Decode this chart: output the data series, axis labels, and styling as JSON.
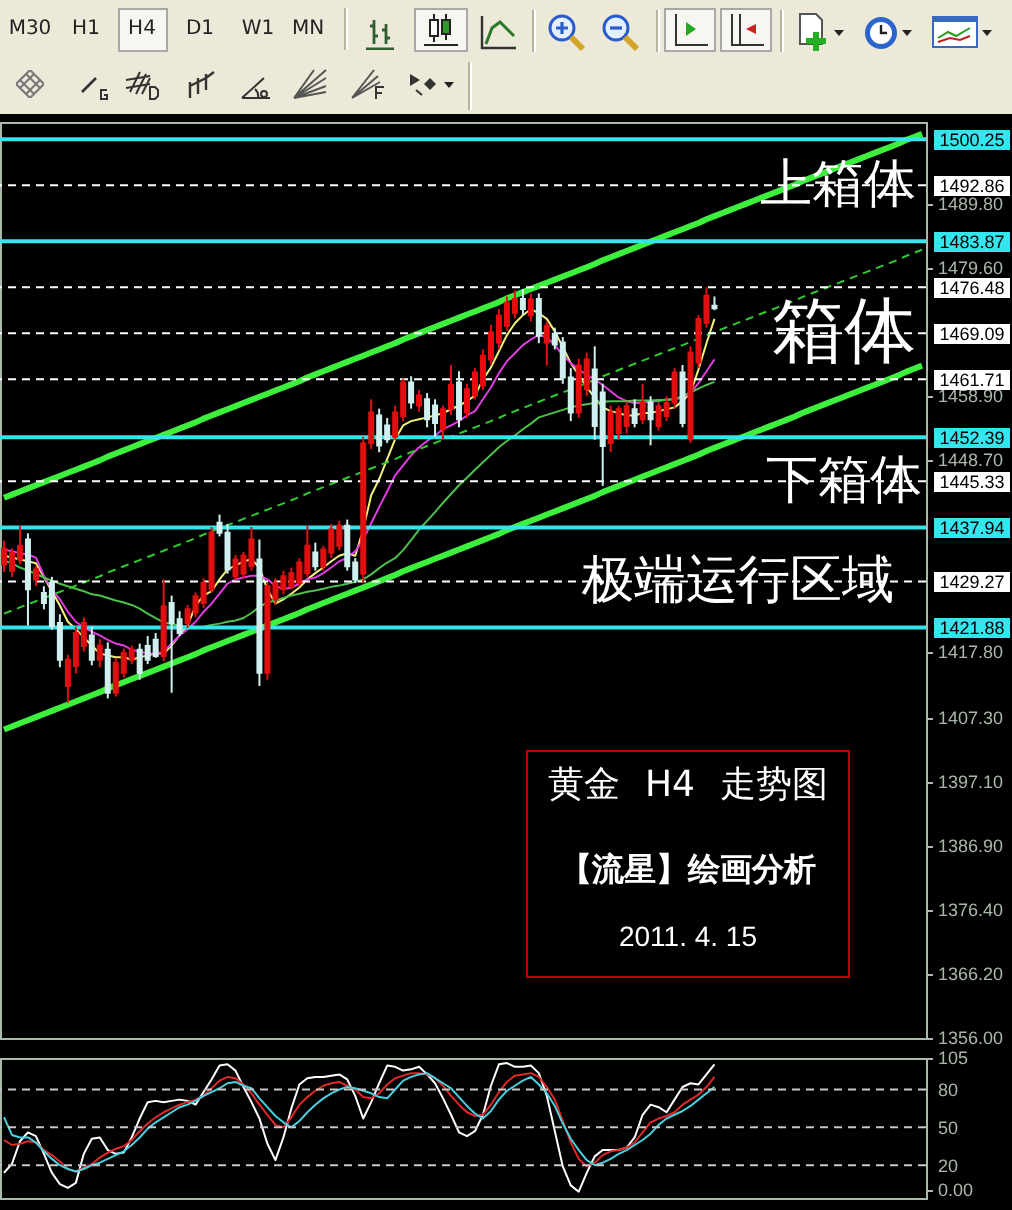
{
  "chart_data": [
    {
      "type": "candlestick",
      "title": "黄金 H4 走势图",
      "subtitle": "【流星】绘画分析",
      "categories": [
        null,
        null,
        null,
        null,
        null,
        null,
        null,
        null,
        null,
        null,
        null,
        null,
        null,
        null,
        null,
        null,
        null,
        null,
        null,
        null,
        null,
        null,
        null,
        null,
        null,
        null,
        null,
        null,
        null,
        null,
        null,
        null,
        null,
        null,
        null,
        null,
        null,
        null,
        null,
        null,
        null,
        null,
        null,
        null,
        null,
        null,
        null,
        null,
        null,
        null,
        null,
        null,
        null,
        null,
        null,
        null,
        null,
        null,
        null,
        null,
        null,
        null,
        null,
        null,
        null,
        null,
        null,
        null,
        null,
        null,
        null,
        null,
        null,
        null,
        null,
        null,
        null,
        null,
        null,
        null,
        null,
        null,
        null,
        null,
        null,
        null,
        null,
        null,
        null,
        null,
        null,
        null,
        null,
        null,
        null,
        null,
        null,
        null,
        null,
        null,
        null,
        null,
        null,
        null,
        null,
        null,
        null,
        null,
        null,
        null,
        null,
        null,
        null,
        null,
        null,
        null
      ],
      "ohlc": [
        [
          1432.0,
          1435.8,
          1430.8,
          1434.5
        ],
        [
          1431.0,
          1434.6,
          1430.0,
          1433.8
        ],
        [
          1432.8,
          1438.2,
          1432.0,
          1435.0
        ],
        [
          1436.0,
          1437.0,
          1422.2,
          1428.0
        ],
        [
          1429.6,
          1431.8,
          1428.5,
          1431.2
        ],
        [
          1427.4,
          1428.5,
          1424.8,
          1425.8
        ],
        [
          1429.0,
          1430.0,
          1421.5,
          1422.1
        ],
        [
          1422.6,
          1424.0,
          1415.5,
          1416.7
        ],
        [
          1412.5,
          1417.5,
          1409.8,
          1416.7
        ],
        [
          1415.7,
          1422.0,
          1414.5,
          1421.0
        ],
        [
          1418.9,
          1423.5,
          1418.0,
          1422.6
        ],
        [
          1420.6,
          1422.0,
          1415.8,
          1416.7
        ],
        [
          1416.7,
          1420.0,
          1415.5,
          1419.0
        ],
        [
          1418.3,
          1419.5,
          1410.5,
          1411.4
        ],
        [
          1411.4,
          1417.0,
          1410.8,
          1416.2
        ],
        [
          1414.6,
          1418.5,
          1413.8,
          1417.8
        ],
        [
          1416.7,
          1419.0,
          1416.0,
          1418.3
        ],
        [
          1418.3,
          1419.3,
          1413.5,
          1414.6
        ],
        [
          1418.9,
          1420.5,
          1416.0,
          1416.7
        ],
        [
          1419.9,
          1421.0,
          1417.0,
          1417.3
        ],
        [
          1417.3,
          1429.6,
          1416.5,
          1425.3
        ],
        [
          1425.8,
          1427.0,
          1411.4,
          1422.6
        ],
        [
          1423.2,
          1424.5,
          1420.5,
          1421.0
        ],
        [
          1422.6,
          1425.5,
          1421.8,
          1424.8
        ],
        [
          1424.3,
          1427.5,
          1423.5,
          1426.9
        ],
        [
          1425.8,
          1429.8,
          1425.0,
          1429.0
        ],
        [
          1428.0,
          1438.0,
          1427.5,
          1437.1
        ],
        [
          1438.7,
          1440.0,
          1436.5,
          1437.1
        ],
        [
          1437.1,
          1438.5,
          1430.5,
          1431.2
        ],
        [
          1430.1,
          1433.5,
          1429.5,
          1432.8
        ],
        [
          1430.5,
          1434.0,
          1429.8,
          1433.4
        ],
        [
          1431.7,
          1438.0,
          1431.0,
          1436.0
        ],
        [
          1432.8,
          1436.0,
          1412.5,
          1414.6
        ],
        [
          1414.6,
          1429.0,
          1413.5,
          1428.5
        ],
        [
          1426.4,
          1429.8,
          1425.5,
          1429.0
        ],
        [
          1428.0,
          1431.0,
          1427.2,
          1430.1
        ],
        [
          1428.5,
          1431.5,
          1428.0,
          1430.6
        ],
        [
          1429.0,
          1433.0,
          1428.5,
          1432.3
        ],
        [
          1430.6,
          1438.2,
          1430.0,
          1435.0
        ],
        [
          1433.9,
          1435.5,
          1431.0,
          1431.7
        ],
        [
          1431.7,
          1435.0,
          1431.0,
          1434.4
        ],
        [
          1433.9,
          1438.5,
          1433.0,
          1437.6
        ],
        [
          1435.0,
          1439.0,
          1434.3,
          1438.2
        ],
        [
          1438.2,
          1439.2,
          1431.0,
          1431.7
        ],
        [
          1432.3,
          1433.0,
          1429.0,
          1429.6
        ],
        [
          1430.5,
          1452.5,
          1429.0,
          1451.4
        ],
        [
          1451.5,
          1458.5,
          1450.5,
          1456.4
        ],
        [
          1455.9,
          1457.0,
          1450.0,
          1451.1
        ],
        [
          1454.3,
          1455.5,
          1451.5,
          1452.1
        ],
        [
          1452.5,
          1457.5,
          1452.0,
          1456.4
        ],
        [
          1455.8,
          1461.8,
          1455.0,
          1461.2
        ],
        [
          1461.2,
          1462.2,
          1457.0,
          1458.0
        ],
        [
          1457.5,
          1460.0,
          1456.5,
          1459.1
        ],
        [
          1458.5,
          1459.5,
          1454.0,
          1455.3
        ],
        [
          1457.5,
          1458.5,
          1452.5,
          1454.7
        ],
        [
          1453.7,
          1457.5,
          1452.0,
          1456.9
        ],
        [
          1456.9,
          1464.0,
          1456.0,
          1460.8
        ],
        [
          1461.2,
          1463.0,
          1454.0,
          1455.3
        ],
        [
          1456.4,
          1461.0,
          1455.5,
          1460.1
        ],
        [
          1459.1,
          1463.5,
          1458.5,
          1462.8
        ],
        [
          1460.7,
          1466.5,
          1460.0,
          1465.5
        ],
        [
          1464.9,
          1470.5,
          1464.0,
          1469.2
        ],
        [
          1467.6,
          1473.0,
          1466.5,
          1471.9
        ],
        [
          1470.3,
          1475.0,
          1469.5,
          1474.0
        ],
        [
          1472.4,
          1476.0,
          1471.5,
          1474.6
        ],
        [
          1474.6,
          1476.2,
          1472.0,
          1473.0
        ],
        [
          1472.0,
          1475.5,
          1471.0,
          1474.5
        ],
        [
          1474.6,
          1475.5,
          1467.5,
          1468.7
        ],
        [
          1467.6,
          1471.0,
          1463.9,
          1470.3
        ],
        [
          1469.0,
          1470.0,
          1466.5,
          1467.3
        ],
        [
          1467.6,
          1468.5,
          1461.0,
          1462.0
        ],
        [
          1462.0,
          1463.5,
          1455.0,
          1456.4
        ],
        [
          1456.4,
          1465.0,
          1455.5,
          1463.9
        ],
        [
          1460.1,
          1466.0,
          1459.0,
          1464.9
        ],
        [
          1463.3,
          1467.0,
          1452.0,
          1454.2
        ],
        [
          1459.6,
          1461.0,
          1444.6,
          1451.0
        ],
        [
          1451.5,
          1457.5,
          1450.0,
          1456.4
        ],
        [
          1453.1,
          1457.5,
          1452.0,
          1456.9
        ],
        [
          1454.2,
          1458.0,
          1453.0,
          1457.4
        ],
        [
          1456.9,
          1458.5,
          1454.0,
          1454.7
        ],
        [
          1455.3,
          1461.0,
          1454.5,
          1458.0
        ],
        [
          1458.0,
          1459.0,
          1451.1,
          1455.3
        ],
        [
          1454.2,
          1458.0,
          1453.5,
          1457.4
        ],
        [
          1455.8,
          1459.0,
          1455.0,
          1457.9
        ],
        [
          1458.0,
          1463.5,
          1457.0,
          1462.8
        ],
        [
          1462.8,
          1464.0,
          1454.0,
          1454.7
        ],
        [
          1452.1,
          1467.0,
          1451.5,
          1466.0
        ],
        [
          1464.4,
          1472.0,
          1463.5,
          1471.4
        ],
        [
          1470.8,
          1476.5,
          1470.0,
          1475.1
        ],
        [
          1473.5,
          1475.0,
          1472.8,
          1473.1
        ],
        null,
        null,
        null,
        null,
        null,
        null,
        null,
        null,
        null,
        null,
        null,
        null,
        null,
        null,
        null,
        null,
        null,
        null,
        null,
        null,
        null,
        null,
        null,
        null,
        null,
        null
      ],
      "colors": [
        "#e01010",
        "#e01010",
        "#e01010",
        "#d0f0f0",
        "#e01010",
        "#d0f0f0",
        "#d0f0f0",
        "#d0f0f0",
        "#e01010",
        "#e01010",
        "#e01010",
        "#d0f0f0",
        "#e01010",
        "#d0f0f0",
        "#e01010",
        "#e01010",
        "#e01010",
        "#d0f0f0",
        "#d0f0f0",
        "#d0f0f0",
        "#e01010",
        "#d0f0f0",
        "#d0f0f0",
        "#e01010",
        "#e01010",
        "#e01010",
        "#e01010",
        "#d0f0f0",
        "#d0f0f0",
        "#e01010",
        "#e01010",
        "#e01010",
        "#d0f0f0",
        "#e01010",
        "#e01010",
        "#e01010",
        "#e01010",
        "#e01010",
        "#e01010",
        "#d0f0f0",
        "#e01010",
        "#e01010",
        "#e01010",
        "#d0f0f0",
        "#d0f0f0",
        "#e01010",
        "#e01010",
        "#d0f0f0",
        "#d0f0f0",
        "#e01010",
        "#e01010",
        "#d0f0f0",
        "#e01010",
        "#d0f0f0",
        "#d0f0f0",
        "#e01010",
        "#e01010",
        "#d0f0f0",
        "#e01010",
        "#e01010",
        "#e01010",
        "#e01010",
        "#e01010",
        "#e01010",
        "#e01010",
        "#d0f0f0",
        "#e01010",
        "#d0f0f0",
        "#e01010",
        "#d0f0f0",
        "#d0f0f0",
        "#d0f0f0",
        "#e01010",
        "#e01010",
        "#d0f0f0",
        "#d0f0f0",
        "#e01010",
        "#e01010",
        "#e01010",
        "#d0f0f0",
        "#e01010",
        "#d0f0f0",
        "#e01010",
        "#e01010",
        "#e01010",
        "#d0f0f0",
        "#e01010",
        "#e01010",
        "#e01010",
        "#d0f0f0",
        null,
        null,
        null,
        null,
        null,
        null,
        null,
        null,
        null,
        null,
        null,
        null,
        null,
        null,
        null,
        null,
        null,
        null,
        null,
        null,
        null,
        null,
        null,
        null,
        null,
        null
      ],
      "series": [
        {
          "type": "line",
          "color": "#f2f27a",
          "values": [
            1433.4,
            1433.1,
            1432.8,
            1432.5,
            1432.2,
            1430.0,
            1427.7,
            1425.4,
            1422.8,
            1421.6,
            1420.3,
            1419.0,
            1417.7,
            1417.4,
            1417.1,
            1417.1,
            1416.7,
            1417.1,
            1417.4,
            1417.7,
            1417.7,
            1419.0,
            1420.6,
            1422.2,
            1425.4,
            1427.0,
            1427.7,
            1429.6,
            1431.2,
            1431.8,
            1432.5,
            1432.8,
            1431.5,
            1428.0,
            1425.7,
            1426.4,
            1427.3,
            1428.3,
            1429.6,
            1430.6,
            1431.5,
            1432.5,
            1433.4,
            1433.8,
            1433.4,
            1437.6,
            1443.1,
            1445.7,
            1448.9,
            1452.1,
            1454.3,
            1455.0,
            1455.3,
            1455.6,
            1455.9,
            1456.3,
            1456.9,
            1457.5,
            1458.2,
            1459.1,
            1461.7,
            1463.6,
            1466.2,
            1468.8,
            1470.7,
            1472.0,
            1473.0,
            1472.3,
            1471.4,
            1469.4,
            1466.9,
            1464.3,
            1462.4,
            1460.4,
            1458.8,
            1457.2,
            1456.6,
            1456.3,
            1455.9,
            1455.9,
            1456.3,
            1456.3,
            1456.6,
            1456.9,
            1457.2,
            1458.2,
            1459.5,
            1463.3,
            1467.5,
            1471.4,
            null,
            null,
            null,
            null,
            null,
            null,
            null,
            null,
            null,
            null,
            null,
            null,
            null,
            null,
            null,
            null,
            null,
            null,
            null,
            null,
            null,
            null,
            null,
            null,
            null,
            null
          ]
        },
        {
          "type": "line",
          "color": "#e23ce2",
          "values": [
            1434.4,
            1434.1,
            1433.8,
            1433.6,
            1433.1,
            1430.2,
            1428.0,
            1426.4,
            1424.4,
            1422.8,
            1421.9,
            1421.2,
            1420.6,
            1419.9,
            1419.3,
            1419.0,
            1418.3,
            1418.0,
            1417.7,
            1417.7,
            1418.0,
            1419.3,
            1420.6,
            1421.6,
            1422.8,
            1424.4,
            1425.7,
            1427.3,
            1428.9,
            1429.6,
            1429.9,
            1430.2,
            1430.2,
            1429.6,
            1428.6,
            1428.0,
            1428.3,
            1428.9,
            1429.6,
            1429.9,
            1430.6,
            1431.5,
            1432.5,
            1433.1,
            1434.1,
            1436.0,
            1438.6,
            1441.2,
            1443.7,
            1446.3,
            1447.9,
            1449.5,
            1450.8,
            1451.8,
            1452.7,
            1453.7,
            1454.3,
            1455.0,
            1455.9,
            1456.6,
            1458.5,
            1460.4,
            1462.7,
            1464.6,
            1465.9,
            1467.2,
            1468.1,
            1468.8,
            1468.5,
            1467.2,
            1465.6,
            1464.3,
            1463.3,
            1462.4,
            1461.7,
            1460.8,
            1459.8,
            1458.8,
            1458.2,
            1457.9,
            1457.9,
            1458.2,
            1458.2,
            1458.5,
            1458.5,
            1458.8,
            1459.5,
            1461.1,
            1463.0,
            1464.9,
            null,
            null,
            null,
            null,
            null,
            null,
            null,
            null,
            null,
            null,
            null,
            null,
            null,
            null,
            null,
            null,
            null,
            null,
            null,
            null,
            null,
            null,
            null,
            null,
            null,
            null
          ]
        },
        {
          "type": "line",
          "color": "#4cc04c",
          "values": [
            1432.6,
            1432.2,
            1431.5,
            1431.0,
            1430.5,
            1429.9,
            1429.4,
            1428.9,
            1428.5,
            1428.1,
            1427.7,
            1427.2,
            1427.0,
            1426.6,
            1426.2,
            1425.9,
            1425.5,
            1424.9,
            1424.1,
            1423.4,
            1422.7,
            1422.4,
            1422.2,
            1422.0,
            1421.9,
            1422.0,
            1422.3,
            1422.5,
            1422.8,
            1423.0,
            1423.4,
            1424.2,
            1425.2,
            1425.9,
            1426.2,
            1426.6,
            1427.0,
            1427.3,
            1427.6,
            1427.8,
            1428.1,
            1428.4,
            1428.6,
            1428.9,
            1429.2,
            1429.6,
            1430.4,
            1431.4,
            1432.3,
            1433.0,
            1434.3,
            1435.9,
            1437.6,
            1439.0,
            1440.4,
            1441.9,
            1443.3,
            1444.7,
            1445.9,
            1447.2,
            1448.4,
            1449.6,
            1450.8,
            1451.8,
            1452.7,
            1453.7,
            1454.6,
            1455.6,
            1456.0,
            1456.4,
            1456.8,
            1457.2,
            1457.5,
            1457.7,
            1457.9,
            1458.1,
            1458.2,
            1458.2,
            1458.2,
            1458.3,
            1458.3,
            1458.3,
            1458.4,
            1458.4,
            1458.5,
            1459.0,
            1459.6,
            1460.2,
            1460.8,
            1461.3,
            null,
            null,
            null,
            null,
            null,
            null,
            null,
            null,
            null,
            null,
            null,
            null,
            null,
            null,
            null,
            null,
            null,
            null,
            null,
            null,
            null,
            null,
            null,
            null,
            null,
            null
          ]
        },
        {
          "type": "line",
          "color": "#3ef03e",
          "values": [
            1442.7,
            1443.2,
            1443.7,
            1444.2,
            1444.7,
            1445.2,
            1445.7,
            1446.2,
            1446.7,
            1447.2,
            1447.7,
            1448.2,
            1448.7,
            1449.3,
            1449.8,
            1450.3,
            1450.8,
            1451.3,
            1451.8,
            1452.3,
            1452.8,
            1453.3,
            1453.8,
            1454.3,
            1454.8,
            1455.4,
            1455.9,
            1456.4,
            1456.9,
            1457.4,
            1457.9,
            1458.4,
            1458.9,
            1459.4,
            1459.9,
            1460.4,
            1460.9,
            1461.4,
            1462.0,
            1462.5,
            1463.0,
            1463.5,
            1464.0,
            1464.5,
            1465.0,
            1465.5,
            1466.0,
            1466.5,
            1467.0,
            1467.5,
            1468.1,
            1468.6,
            1469.1,
            1469.6,
            1470.1,
            1470.6,
            1471.1,
            1471.6,
            1472.1,
            1472.6,
            1473.1,
            1473.6,
            1474.1,
            1474.7,
            1475.2,
            1475.7,
            1476.2,
            1476.7,
            1477.2,
            1477.7,
            1478.2,
            1478.7,
            1479.2,
            1479.7,
            1480.2,
            1480.8,
            1481.3,
            1481.8,
            1482.3,
            1482.8,
            1483.3,
            1483.8,
            1484.3,
            1484.8,
            1485.3,
            1485.8,
            1486.3,
            1486.8,
            1487.4,
            1487.9,
            1488.4,
            1488.9,
            1489.4,
            1489.9,
            1490.4,
            1490.9,
            1491.4,
            1491.9,
            1492.4,
            1492.9,
            1493.5,
            1494.0,
            1494.5,
            1495.0,
            1495.5,
            1496.0,
            1496.5,
            1497.0,
            1497.5,
            1498.0,
            1498.5,
            1499.0,
            1499.5,
            1500.1,
            1500.6,
            1501.1
          ]
        },
        {
          "type": "line",
          "color": "#2ecc2e",
          "line_style": "dashed",
          "values": [
            1424.1,
            1424.6,
            1425.1,
            1425.6,
            1426.1,
            1426.6,
            1427.1,
            1427.6,
            1428.1,
            1428.6,
            1429.1,
            1429.6,
            1430.1,
            1430.7,
            1431.2,
            1431.7,
            1432.2,
            1432.7,
            1433.2,
            1433.7,
            1434.2,
            1434.7,
            1435.2,
            1435.7,
            1436.2,
            1436.8,
            1437.3,
            1437.8,
            1438.3,
            1438.8,
            1439.3,
            1439.8,
            1440.3,
            1440.8,
            1441.3,
            1441.8,
            1442.3,
            1442.8,
            1443.4,
            1443.9,
            1444.4,
            1444.9,
            1445.4,
            1445.9,
            1446.4,
            1446.9,
            1447.4,
            1447.9,
            1448.4,
            1448.9,
            1449.5,
            1450.0,
            1450.5,
            1451.0,
            1451.5,
            1452.0,
            1452.5,
            1453.0,
            1453.5,
            1454.0,
            1454.5,
            1455.0,
            1455.5,
            1456.1,
            1456.6,
            1457.1,
            1457.6,
            1458.1,
            1458.6,
            1459.1,
            1459.6,
            1460.1,
            1460.6,
            1461.1,
            1461.6,
            1462.2,
            1462.7,
            1463.2,
            1463.7,
            1464.2,
            1464.7,
            1465.2,
            1465.7,
            1466.2,
            1466.7,
            1467.2,
            1467.7,
            1468.2,
            1468.8,
            1469.3,
            1469.8,
            1470.3,
            1470.8,
            1471.3,
            1471.8,
            1472.3,
            1472.8,
            1473.3,
            1473.8,
            1474.3,
            1474.9,
            1475.4,
            1475.9,
            1476.4,
            1476.9,
            1477.4,
            1477.9,
            1478.4,
            1478.9,
            1479.4,
            1479.9,
            1480.4,
            1480.9,
            1481.5,
            1482.0,
            1482.5
          ]
        },
        {
          "type": "line",
          "color": "#3ef03e",
          "values": [
            1405.5,
            1406.0,
            1406.5,
            1407.0,
            1407.5,
            1408.0,
            1408.5,
            1409.0,
            1409.5,
            1410.0,
            1410.5,
            1411.0,
            1411.5,
            1412.1,
            1412.6,
            1413.1,
            1413.6,
            1414.1,
            1414.6,
            1415.1,
            1415.6,
            1416.1,
            1416.6,
            1417.1,
            1417.6,
            1418.2,
            1418.7,
            1419.2,
            1419.7,
            1420.2,
            1420.7,
            1421.2,
            1421.7,
            1422.2,
            1422.7,
            1423.2,
            1423.7,
            1424.2,
            1424.8,
            1425.3,
            1425.8,
            1426.3,
            1426.8,
            1427.3,
            1427.8,
            1428.3,
            1428.8,
            1429.3,
            1429.8,
            1430.3,
            1430.9,
            1431.4,
            1431.9,
            1432.4,
            1432.9,
            1433.4,
            1433.9,
            1434.4,
            1434.9,
            1435.4,
            1435.9,
            1436.4,
            1436.9,
            1437.5,
            1438.0,
            1438.5,
            1439.0,
            1439.5,
            1440.0,
            1440.5,
            1441.0,
            1441.5,
            1442.0,
            1442.5,
            1443.0,
            1443.6,
            1444.1,
            1444.6,
            1445.1,
            1445.6,
            1446.1,
            1446.6,
            1447.1,
            1447.6,
            1448.1,
            1448.6,
            1449.1,
            1449.6,
            1450.2,
            1450.7,
            1451.2,
            1451.7,
            1452.2,
            1452.7,
            1453.2,
            1453.7,
            1454.2,
            1454.7,
            1455.2,
            1455.7,
            1456.3,
            1456.8,
            1457.3,
            1457.8,
            1458.3,
            1458.8,
            1459.3,
            1459.8,
            1460.3,
            1460.8,
            1461.3,
            1461.8,
            1462.3,
            1462.9,
            1463.4,
            1463.9
          ]
        }
      ],
      "ylim": [
        1356,
        1503
      ],
      "yticks": [
        {
          "value": 1489.8,
          "label": "1489.80"
        },
        {
          "value": 1479.6,
          "label": "1479.60"
        },
        {
          "value": 1458.9,
          "label": "1458.90"
        },
        {
          "value": 1448.7,
          "label": "1448.70"
        },
        {
          "value": 1417.8,
          "label": "1417.80"
        },
        {
          "value": 1407.3,
          "label": "1407.30"
        },
        {
          "value": 1397.1,
          "label": "1397.10"
        },
        {
          "value": 1386.9,
          "label": "1386.90"
        },
        {
          "value": 1376.4,
          "label": "1376.40"
        },
        {
          "value": 1366.2,
          "label": "1366.20"
        },
        {
          "value": 1356,
          "label": "1356.00"
        }
      ],
      "ref_lines": [
        {
          "axis": "y",
          "value": 1500.25,
          "label": "1500.25",
          "color": "#33e6ee"
        },
        {
          "axis": "y",
          "value": 1492.86,
          "label": "1492.86",
          "color": "#ffffff",
          "line_style": "dashed"
        },
        {
          "axis": "y",
          "value": 1483.87,
          "label": "1483.87",
          "color": "#33e6ee"
        },
        {
          "axis": "y",
          "value": 1476.48,
          "label": "1476.48",
          "color": "#ffffff",
          "line_style": "dashed"
        },
        {
          "axis": "y",
          "value": 1469.09,
          "label": "1469.09",
          "color": "#ffffff",
          "line_style": "dashed"
        },
        {
          "axis": "y",
          "value": 1461.71,
          "label": "1461.71",
          "color": "#ffffff",
          "line_style": "dashed"
        },
        {
          "axis": "y",
          "value": 1452.39,
          "label": "1452.39",
          "color": "#33e6ee"
        },
        {
          "axis": "y",
          "value": 1445.33,
          "label": "1445.33",
          "color": "#ffffff",
          "line_style": "dashed"
        },
        {
          "axis": "y",
          "value": 1437.94,
          "label": "1437.94",
          "color": "#33e6ee"
        },
        {
          "axis": "y",
          "value": 1429.27,
          "label": "1429.27",
          "color": "#ffffff",
          "line_style": "dashed"
        },
        {
          "axis": "y",
          "value": 1421.88,
          "label": "1421.88",
          "color": "#33e6ee"
        }
      ],
      "annotations": [
        {
          "text": "上箱体",
          "y": 1492.86
        },
        {
          "text": "箱体",
          "y": 1469.09
        },
        {
          "text": "下箱体",
          "y": 1445.33
        },
        {
          "text": "极端运行区域",
          "y": 1429.27
        },
        "2011. 4. 15",
        "M30",
        "H1",
        "H4",
        "D1",
        "W1",
        "MN"
      ],
      "tick_labels": "y"
    },
    {
      "type": "line",
      "categories": [
        null,
        null,
        null,
        null,
        null,
        null,
        null,
        null,
        null,
        null,
        null,
        null,
        null,
        null,
        null,
        null,
        null,
        null,
        null,
        null,
        null,
        null,
        null,
        null,
        null,
        null,
        null,
        null,
        null,
        null,
        null,
        null,
        null,
        null,
        null,
        null,
        null,
        null,
        null,
        null,
        null,
        null,
        null,
        null,
        null,
        null,
        null,
        null,
        null,
        null,
        null,
        null,
        null,
        null,
        null,
        null,
        null,
        null,
        null,
        null,
        null,
        null,
        null,
        null,
        null,
        null,
        null,
        null,
        null,
        null,
        null,
        null,
        null,
        null,
        null,
        null,
        null,
        null,
        null,
        null,
        null,
        null,
        null,
        null,
        null,
        null,
        null,
        null,
        null,
        null,
        null,
        null,
        null,
        null,
        null,
        null,
        null,
        null,
        null,
        null,
        null,
        null,
        null,
        null,
        null,
        null,
        null,
        null,
        null,
        null,
        null,
        null,
        null,
        null,
        null,
        null
      ],
      "series": [
        {
          "color": "#ffffff",
          "values": [
            14,
            21,
            39,
            46,
            43,
            29,
            14,
            5,
            2,
            6,
            29,
            41,
            42,
            32,
            29,
            30,
            42,
            57,
            70,
            71,
            70,
            71,
            72,
            71,
            68,
            78,
            88,
            99,
            100,
            95,
            82,
            70,
            57,
            37,
            24,
            42,
            65,
            84,
            89,
            90,
            90,
            91,
            92,
            88,
            75,
            57,
            70,
            85,
            99,
            98,
            95,
            96,
            98,
            92,
            85,
            73,
            60,
            46,
            43,
            47,
            60,
            83,
            100,
            101,
            98,
            98,
            99,
            93,
            75,
            47,
            19,
            4,
            -1,
            14,
            27,
            32,
            32,
            32,
            34,
            42,
            60,
            68,
            66,
            62,
            72,
            82,
            85,
            84,
            92,
            100,
            null,
            null,
            null,
            null,
            null,
            null,
            null,
            null,
            null,
            null,
            null,
            null,
            null,
            null,
            null,
            null,
            null,
            null,
            null,
            null,
            null,
            null,
            null,
            null,
            null,
            null
          ]
        },
        {
          "color": "#e02828",
          "values": [
            40,
            36,
            37,
            39,
            38,
            32,
            28,
            23,
            17,
            15,
            18,
            21,
            26,
            30,
            33,
            35,
            40,
            47,
            53,
            58,
            62,
            65,
            68,
            70,
            72,
            75,
            81,
            87,
            90,
            89,
            84,
            77,
            68,
            60,
            52,
            50,
            58,
            68,
            74,
            79,
            83,
            85,
            86,
            83,
            80,
            74,
            73,
            77,
            84,
            89,
            91,
            93,
            93,
            92,
            89,
            83,
            75,
            68,
            62,
            59,
            60,
            68,
            78,
            86,
            91,
            92,
            93,
            90,
            82,
            72,
            55,
            38,
            25,
            19,
            22,
            28,
            31,
            32,
            34,
            38,
            46,
            54,
            57,
            59,
            62,
            68,
            72,
            76,
            82,
            90,
            null,
            null,
            null,
            null,
            null,
            null,
            null,
            null,
            null,
            null,
            null,
            null,
            null,
            null,
            null,
            null,
            null,
            null,
            null,
            null,
            null,
            null,
            null,
            null,
            null,
            null
          ]
        },
        {
          "color": "#48d0e0",
          "values": [
            58,
            44,
            42,
            42,
            38,
            31,
            25,
            20,
            17,
            15,
            17,
            20,
            22,
            25,
            28,
            31,
            36,
            42,
            49,
            54,
            58,
            62,
            66,
            68,
            71,
            75,
            78,
            81,
            85,
            86,
            83,
            81,
            73,
            66,
            59,
            54,
            50,
            55,
            62,
            68,
            73,
            77,
            80,
            82,
            81,
            79,
            77,
            74,
            73,
            80,
            87,
            90,
            92,
            93,
            89,
            85,
            81,
            74,
            67,
            61,
            57,
            63,
            72,
            79,
            83,
            87,
            90,
            84,
            77,
            67,
            53,
            41,
            32,
            24,
            20,
            22,
            25,
            29,
            32,
            36,
            40,
            45,
            52,
            57,
            60,
            63,
            67,
            72,
            77,
            82,
            null,
            null,
            null,
            null,
            null,
            null,
            null,
            null,
            null,
            null,
            null,
            null,
            null,
            null,
            null,
            null,
            null,
            null,
            null,
            null,
            null,
            null,
            null,
            null,
            null,
            null
          ]
        }
      ],
      "ylim": [
        -6,
        105
      ],
      "yticks": [
        105,
        80,
        50,
        20,
        {
          "value": 0,
          "label": "0.00"
        }
      ],
      "ref_lines": [
        {
          "axis": "y",
          "value": 80,
          "color": "#c8c8c8",
          "line_style": "dashed"
        },
        {
          "axis": "y",
          "value": 50,
          "color": "#c8c8c8",
          "line_style": "dashed"
        },
        {
          "axis": "y",
          "value": 20,
          "color": "#c8c8c8",
          "line_style": "dashed"
        }
      ],
      "tick_labels": "y"
    }
  ]
}
